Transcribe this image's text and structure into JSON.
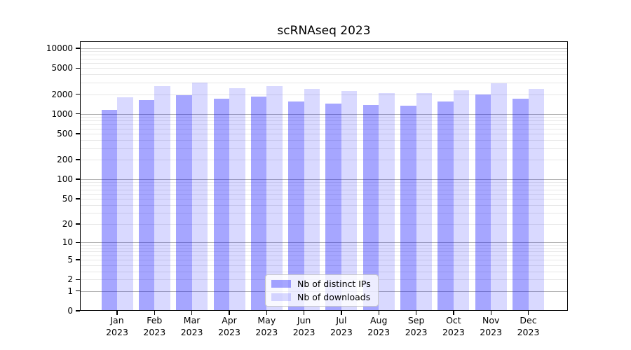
{
  "chart_data": {
    "type": "bar",
    "title": "scRNAseq 2023",
    "categories": [
      "Jan 2023",
      "Feb 2023",
      "Mar 2023",
      "Apr 2023",
      "May 2023",
      "Jun 2023",
      "Jul 2023",
      "Aug 2023",
      "Sep 2023",
      "Oct 2023",
      "Nov 2023",
      "Dec 2023"
    ],
    "x_tick_months": [
      "Jan",
      "Feb",
      "Mar",
      "Apr",
      "May",
      "Jun",
      "Jul",
      "Aug",
      "Sep",
      "Oct",
      "Nov",
      "Dec"
    ],
    "x_tick_year": "2023",
    "series": [
      {
        "name": "Nb of distinct IPs",
        "color": "rgba(0,0,255,0.35)",
        "values": [
          1160,
          1640,
          1950,
          1720,
          1830,
          1550,
          1440,
          1360,
          1350,
          1540,
          1980,
          1700
        ]
      },
      {
        "name": "Nb of downloads",
        "color": "rgba(0,0,255,0.15)",
        "values": [
          1800,
          2650,
          3000,
          2500,
          2650,
          2400,
          2250,
          2100,
          2100,
          2300,
          2900,
          2400
        ]
      }
    ],
    "y_axis": {
      "scale": "log10(value+1)",
      "ticks": [
        0,
        1,
        2,
        5,
        10,
        20,
        50,
        100,
        200,
        500,
        1000,
        2000,
        5000,
        10000
      ],
      "top_value": 12800,
      "major_gridline_values": [
        1,
        10,
        100,
        1000,
        10000
      ]
    },
    "grid": "horizontal, major and minor",
    "legend_position": "lower center",
    "ylabel": "",
    "xlabel": ""
  },
  "colors": {
    "major_grid": "#b3b3b3",
    "minor_grid": "#e7e7e7",
    "frame": "#000000",
    "background": "#ffffff"
  }
}
